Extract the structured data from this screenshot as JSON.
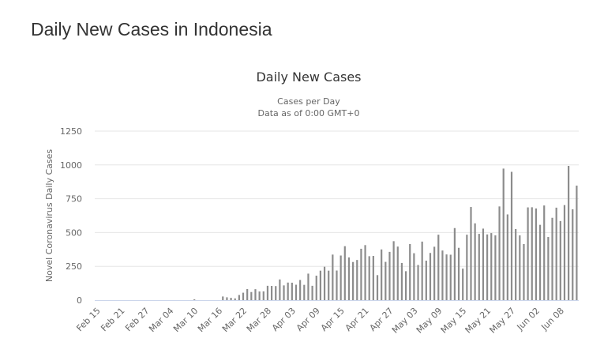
{
  "page": {
    "title": "Daily New Cases in Indonesia"
  },
  "chart": {
    "title": "Daily New Cases",
    "subtitle_line1": "Cases per Day",
    "subtitle_line2": "Data as of 0:00 GMT+0"
  },
  "colors": {
    "bar": "#8c8c8c",
    "grid": "#e6e6e6",
    "axis": "#ccd6eb"
  },
  "chart_data": {
    "type": "bar",
    "title": "Daily New Cases",
    "subtitle": "Cases per Day / Data as of 0:00 GMT+0",
    "xlabel": "",
    "ylabel": "Novel Coronavirus Daily Cases",
    "ylim": [
      0,
      1250
    ],
    "yticks": [
      0,
      250,
      500,
      750,
      1000,
      1250
    ],
    "grid": true,
    "legend": "none",
    "start_date": "Feb 15",
    "xtick_labels": [
      "Feb 15",
      "Feb 21",
      "Feb 27",
      "Mar 04",
      "Mar 10",
      "Mar 16",
      "Mar 22",
      "Mar 28",
      "Apr 03",
      "Apr 09",
      "Apr 15",
      "Apr 21",
      "Apr 27",
      "May 03",
      "May 09",
      "May 15",
      "May 21",
      "May 27",
      "Jun 02",
      "Jun 08"
    ],
    "values": [
      0,
      0,
      0,
      0,
      0,
      0,
      0,
      0,
      0,
      0,
      0,
      0,
      0,
      0,
      0,
      0,
      0,
      0,
      0,
      0,
      0,
      0,
      0,
      0,
      4,
      0,
      0,
      0,
      0,
      0,
      0,
      27,
      21,
      17,
      13,
      38,
      55,
      82,
      60,
      81,
      64,
      65,
      106,
      105,
      104,
      153,
      109,
      130,
      129,
      114,
      149,
      113,
      196,
      106,
      181,
      218,
      247,
      218,
      337,
      219,
      330,
      399,
      316,
      282,
      297,
      380,
      407,
      325,
      327,
      185,
      375,
      283,
      357,
      436,
      396,
      275,
      214,
      415,
      347,
      260,
      433,
      292,
      349,
      395,
      484,
      367,
      338,
      336,
      533,
      387,
      233,
      484,
      689,
      568,
      490,
      529,
      486,
      496,
      479,
      693,
      973,
      634,
      949,
      526,
      479,
      415,
      686,
      687,
      678,
      557,
      700,
      467,
      609,
      684,
      585,
      703,
      993,
      672,
      847
    ]
  },
  "axes": {
    "y": {
      "title": "Novel Coronavirus Daily Cases",
      "ticks": [
        "0",
        "250",
        "500",
        "750",
        "1000",
        "1250"
      ]
    },
    "x": {
      "ticks": [
        "Feb 15",
        "Feb 21",
        "Feb 27",
        "Mar 04",
        "Mar 10",
        "Mar 16",
        "Mar 22",
        "Mar 28",
        "Apr 03",
        "Apr 09",
        "Apr 15",
        "Apr 21",
        "Apr 27",
        "May 03",
        "May 09",
        "May 15",
        "May 21",
        "May 27",
        "Jun 02",
        "Jun 08"
      ]
    }
  }
}
